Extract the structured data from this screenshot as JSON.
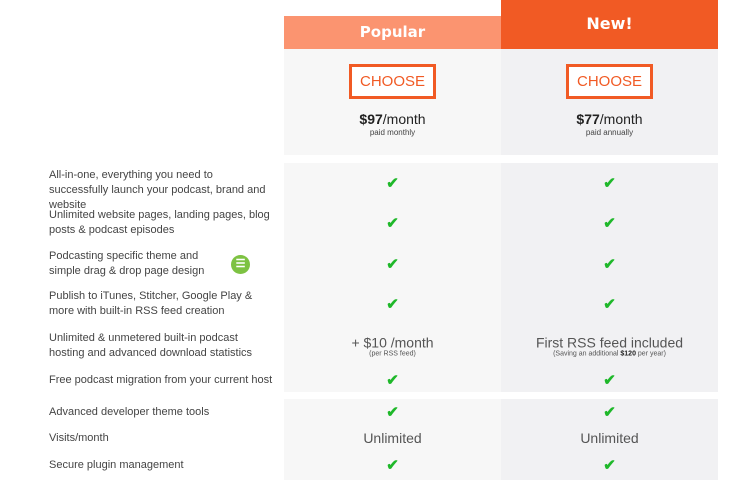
{
  "plans": [
    {
      "badge": "Popular",
      "choose_label": "CHOOSE",
      "price": "$97",
      "period": "/month",
      "billing": "paid monthly"
    },
    {
      "badge": "New!",
      "choose_label": "CHOOSE",
      "price": "$77",
      "period": "/month",
      "billing": "paid annually"
    }
  ],
  "features": [
    {
      "label": "All-in-one, everything you need to successfully launch your podcast, brand and website",
      "values": [
        "✔",
        "✔"
      ]
    },
    {
      "label": "Unlimited website pages, landing pages, blog posts & podcast episodes",
      "values": [
        "✔",
        "✔"
      ]
    },
    {
      "label": "Podcasting specific theme and simple drag & drop page design",
      "values": [
        "✔",
        "✔"
      ]
    },
    {
      "label": "Publish to iTunes, Stitcher, Google Play & more with built-in RSS feed creation",
      "values": [
        "✔",
        "✔"
      ]
    },
    {
      "label": "Unlimited & unmetered built-in podcast hosting and advanced download statistics",
      "values": [
        "+ $10 /month",
        "First RSS feed included"
      ],
      "notes": [
        "(per RSS feed)",
        "(Saving an additional ",
        "$120",
        " per year)"
      ]
    },
    {
      "label": "Free podcast migration from your current host",
      "values": [
        "✔",
        "✔"
      ]
    },
    {
      "label": "Advanced developer theme tools",
      "values": [
        "✔",
        "✔"
      ]
    },
    {
      "label": "Visits/month",
      "values": [
        "Unlimited",
        "Unlimited"
      ]
    },
    {
      "label": "Secure plugin management",
      "values": [
        "✔",
        "✔"
      ]
    }
  ],
  "logo_icon": "theme-builder-logo-icon",
  "colors": {
    "popular": "#fb9470",
    "new": "#f15a24",
    "check": "#1fb82a"
  }
}
